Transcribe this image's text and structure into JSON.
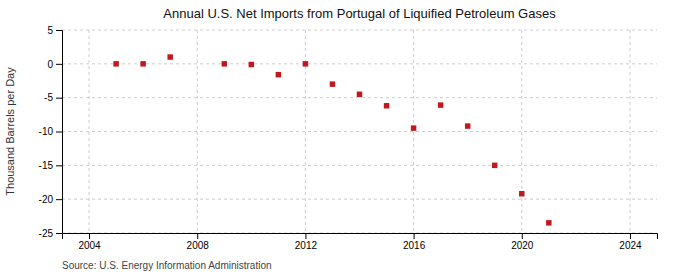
{
  "chart_data": {
    "type": "scatter",
    "title": "Annual U.S. Net Imports from Portugal of Liquified Petroleum Gases",
    "ylabel": "Thousand Barrels per Day",
    "source": "Source: U.S. Energy Information Administration",
    "x": [
      2005,
      2006,
      2007,
      2009,
      2010,
      2011,
      2012,
      2013,
      2014,
      2015,
      2016,
      2017,
      2018,
      2019,
      2020,
      2021
    ],
    "values": [
      0.0,
      0.0,
      1.0,
      0.0,
      -0.1,
      -1.6,
      0.0,
      -3.0,
      -4.5,
      -6.2,
      -9.5,
      -6.1,
      -9.2,
      -15.0,
      -19.2,
      -23.5
    ],
    "xlim": [
      2003,
      2025
    ],
    "ylim": [
      -25,
      5
    ],
    "xticks": [
      2004,
      2008,
      2012,
      2016,
      2020,
      2024
    ],
    "yticks": [
      5,
      0,
      -5,
      -10,
      -15,
      -20,
      -25
    ],
    "color": "#c0181c",
    "marker": "square",
    "grid": true
  }
}
